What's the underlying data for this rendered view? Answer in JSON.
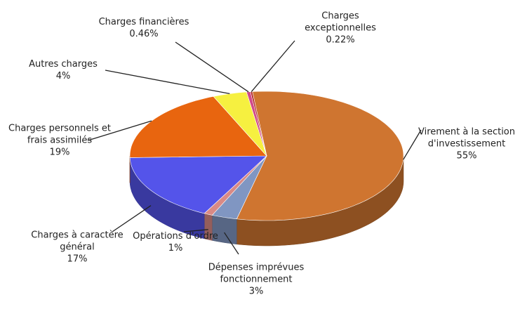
{
  "chart_data": {
    "type": "pie3d",
    "categories": [
      "Virement à la section d'investissement",
      "Dépenses imprévues fonctionnement",
      "Opérations d'ordre",
      "Charges à caractère général",
      "Charges personnels et frais assimilés",
      "Autres charges",
      "Charges financières",
      "Charges exceptionnelles"
    ],
    "values": [
      55,
      3,
      1,
      17,
      19,
      4,
      0.46,
      0.22
    ],
    "value_labels": [
      "55%",
      "3%",
      "1%",
      "17%",
      "19%",
      "4%",
      "0.46%",
      "0.22%"
    ],
    "colors": [
      "#cf7530",
      "#8096c2",
      "#d98a86",
      "#5454ea",
      "#e8650f",
      "#f6f040",
      "#d24a8a",
      "#b32626"
    ]
  }
}
